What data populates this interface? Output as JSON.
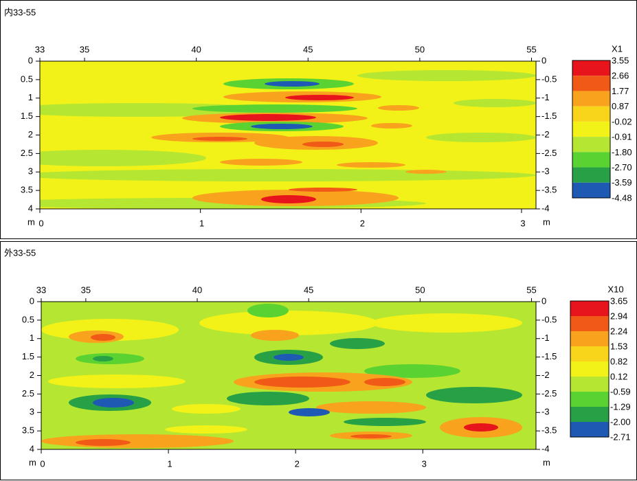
{
  "chart_data": [
    {
      "type": "contour",
      "title": "内33-55",
      "xlim": [
        33,
        55.2
      ],
      "xticks": [
        33,
        35,
        40,
        45,
        50,
        55
      ],
      "x2lim": [
        0,
        3.09
      ],
      "x2ticks": [
        0,
        1,
        2,
        3
      ],
      "x2label": "m",
      "ylim": [
        0,
        4
      ],
      "y_reversed": true,
      "yticks": [
        0,
        0.5,
        1,
        1.5,
        2,
        2.5,
        3,
        3.5,
        4
      ],
      "y2lim": [
        -4,
        0
      ],
      "y2ticks": [
        0,
        -0.5,
        -1,
        -1.5,
        -2,
        -2.5,
        -3,
        -3.5,
        -4
      ],
      "colorbar": {
        "label": "X1",
        "levels": [
          3.55,
          2.66,
          1.77,
          0.87,
          -0.02,
          -0.91,
          {
            "value": -1.8,
            "label": "-1.80"
          },
          {
            "value": -2.7,
            "label": "-2.70"
          },
          -3.59,
          -4.48
        ],
        "colors": [
          "#e8141c",
          "#f05a16",
          "#f8a21e",
          "#f8d41a",
          "#f2f218",
          "#b4e632",
          "#5ad232",
          "#28a046",
          "#1e5ab4"
        ]
      }
    },
    {
      "type": "contour",
      "title": "外33-55",
      "xlim": [
        33,
        55.2
      ],
      "xticks": [
        33,
        35,
        40,
        45,
        50,
        55
      ],
      "x2lim": [
        0,
        3.89
      ],
      "x2ticks": [
        0,
        1,
        2,
        3
      ],
      "x2label": "m",
      "ylim": [
        0,
        4
      ],
      "y_reversed": true,
      "yticks": [
        0,
        0.5,
        1,
        1.5,
        2,
        2.5,
        3,
        3.5,
        4
      ],
      "y2lim": [
        -4,
        0
      ],
      "y2ticks": [
        0,
        -0.5,
        -1,
        -1.5,
        -2,
        -2.5,
        -3,
        -3.5,
        -4
      ],
      "colorbar": {
        "label": "X10",
        "levels": [
          3.65,
          2.94,
          2.24,
          1.53,
          0.82,
          0.12,
          -0.59,
          -1.29,
          {
            "value": -2,
            "label": "-2.00"
          },
          -2.71
        ],
        "colors": [
          "#e8141c",
          "#f05a16",
          "#f8a21e",
          "#f8d41a",
          "#f2f218",
          "#b4e632",
          "#5ad232",
          "#28a046",
          "#1e5ab4"
        ]
      }
    }
  ]
}
